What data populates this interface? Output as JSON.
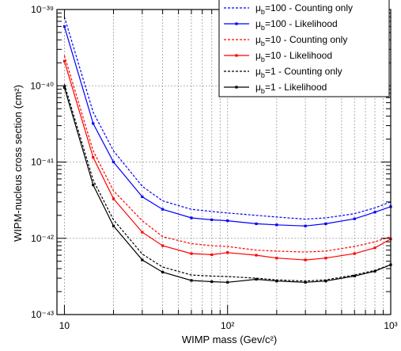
{
  "chart_data": {
    "type": "line",
    "xlabel": "WIMP mass (Gev/c²)",
    "ylabel": "WIPM-nucleus cross section (cm²)",
    "xscale": "log",
    "yscale": "log",
    "xlim": [
      9,
      1000
    ],
    "ylim": [
      1e-43,
      1e-39
    ],
    "grid": true,
    "legend_position": "top-right",
    "x_tick_labels": [
      "10",
      "10²",
      "10³"
    ],
    "y_tick_labels": [
      "10⁻⁴³",
      "10⁻⁴²",
      "10⁻⁴¹",
      "10⁻⁴⁰",
      "10⁻³⁹"
    ],
    "x": [
      10,
      15,
      20,
      30,
      40,
      60,
      80,
      100,
      150,
      200,
      300,
      400,
      600,
      800,
      1000
    ],
    "series": [
      {
        "name": "μb=100 - Counting only",
        "legend_main": "μ",
        "legend_sub": "b",
        "legend_rest": "=100 - Counting only",
        "color": "#0000ff",
        "dashed": true,
        "markers": false,
        "values": [
          8e-40,
          4.5e-41,
          1.4e-41,
          4.8e-42,
          3.1e-42,
          2.4e-42,
          2.25e-42,
          2.15e-42,
          2e-42,
          1.9e-42,
          1.78e-42,
          1.85e-42,
          2.1e-42,
          2.5e-42,
          3e-42
        ]
      },
      {
        "name": "μb=100 - Likelihood",
        "legend_main": "μ",
        "legend_sub": "b",
        "legend_rest": "=100 - Likelihood",
        "color": "#0000ff",
        "dashed": false,
        "markers": true,
        "values": [
          6e-40,
          3.2e-41,
          1e-41,
          3.5e-42,
          2.4e-42,
          1.85e-42,
          1.75e-42,
          1.7e-42,
          1.55e-42,
          1.5e-42,
          1.45e-42,
          1.55e-42,
          1.8e-42,
          2.2e-42,
          2.6e-42
        ]
      },
      {
        "name": "μb=10 - Counting only",
        "legend_main": "μ",
        "legend_sub": "b",
        "legend_rest": "=10  - Counting only",
        "color": "#ff0000",
        "dashed": true,
        "markers": false,
        "values": [
          2.5e-40,
          1.4e-41,
          4.2e-42,
          1.7e-42,
          1.05e-42,
          8.5e-43,
          8e-43,
          7.8e-43,
          7e-43,
          6.8e-43,
          6.6e-43,
          6.8e-43,
          7.8e-43,
          9e-43,
          1.05e-42
        ]
      },
      {
        "name": "μb=10 - Likelihood",
        "legend_main": "μ",
        "legend_sub": "b",
        "legend_rest": "=10  - Likelihood",
        "color": "#ff0000",
        "dashed": false,
        "markers": true,
        "values": [
          2.1e-40,
          1.15e-41,
          3.3e-42,
          1.2e-42,
          8e-43,
          6.3e-43,
          6.1e-43,
          6.5e-43,
          6e-43,
          5.5e-43,
          5.2e-43,
          5.5e-43,
          6.3e-43,
          7.5e-43,
          9.8e-43
        ]
      },
      {
        "name": "μb=1 - Counting only",
        "legend_main": "μ",
        "legend_sub": "b",
        "legend_rest": "=1    - Counting only",
        "color": "#000000",
        "dashed": true,
        "markers": false,
        "values": [
          1.05e-40,
          5.8e-42,
          1.75e-42,
          6.2e-43,
          4.2e-43,
          3.3e-43,
          3.2e-43,
          3.15e-43,
          3e-43,
          2.85e-43,
          2.75e-43,
          2.85e-43,
          3.3e-43,
          3.8e-43,
          4.5e-43
        ]
      },
      {
        "name": "μb=1 - Likelihood",
        "legend_main": "μ",
        "legend_sub": "b",
        "legend_rest": "=1    - Likelihood",
        "color": "#000000",
        "dashed": false,
        "markers": true,
        "values": [
          9.5e-41,
          5e-42,
          1.45e-42,
          5.2e-43,
          3.6e-43,
          2.8e-43,
          2.7e-43,
          2.65e-43,
          2.9e-43,
          2.75e-43,
          2.65e-43,
          2.75e-43,
          3.2e-43,
          3.7e-43,
          4.5e-43
        ]
      }
    ]
  }
}
